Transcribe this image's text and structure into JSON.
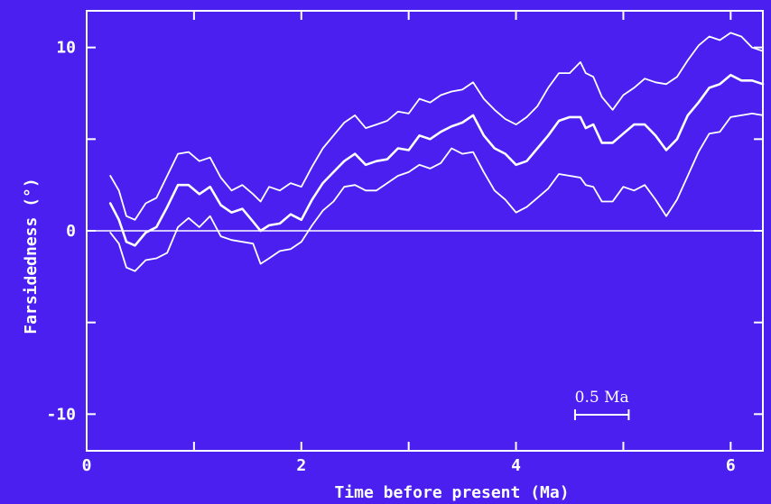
{
  "chart_data": {
    "type": "line",
    "title": "",
    "xlabel": "Time before present  (Ma)",
    "ylabel": "Farsidedness (°)",
    "xlim": [
      0,
      6.3
    ],
    "ylim": [
      -12,
      12
    ],
    "x_ticks": [
      0,
      2,
      4,
      6
    ],
    "x_tick_labels": [
      "0",
      "2",
      "4",
      "6"
    ],
    "y_ticks": [
      -10,
      0,
      10
    ],
    "y_tick_labels": [
      "-10",
      "0",
      "10"
    ],
    "grid": false,
    "reference_line_y": 0,
    "scale_bar": {
      "label": "0.5 Ma",
      "length": 0.5
    },
    "series": [
      {
        "x": [
          0.22,
          0.3,
          0.37,
          0.45,
          0.55,
          0.65,
          0.75,
          0.85,
          0.95,
          1.05,
          1.15,
          1.25,
          1.35,
          1.45,
          1.55,
          1.62,
          1.7,
          1.8,
          1.9,
          2.0,
          2.1,
          2.2,
          2.3,
          2.4,
          2.5,
          2.6,
          2.7,
          2.8,
          2.9,
          3.0,
          3.1,
          3.2,
          3.3,
          3.4,
          3.5,
          3.6,
          3.7,
          3.8,
          3.9,
          4.0,
          4.1,
          4.2,
          4.3,
          4.4,
          4.5,
          4.6,
          4.65,
          4.72,
          4.8,
          4.9,
          5.0,
          5.1,
          5.2,
          5.3,
          5.4,
          5.5,
          5.6,
          5.7,
          5.8,
          5.9,
          6.0,
          6.1,
          6.2,
          6.3
        ],
        "values": [
          3.0,
          2.2,
          0.8,
          0.6,
          1.5,
          1.8,
          3.0,
          4.2,
          4.3,
          3.8,
          4.0,
          2.9,
          2.2,
          2.5,
          2.0,
          1.6,
          2.4,
          2.2,
          2.6,
          2.4,
          3.5,
          4.5,
          5.2,
          5.9,
          6.3,
          5.6,
          5.8,
          6.0,
          6.5,
          6.4,
          7.2,
          7.0,
          7.4,
          7.6,
          7.7,
          8.1,
          7.2,
          6.6,
          6.1,
          5.8,
          6.2,
          6.8,
          7.8,
          8.6,
          8.6,
          9.2,
          8.6,
          8.4,
          7.3,
          6.6,
          7.4,
          7.8,
          8.3,
          8.1,
          8.0,
          8.4,
          9.3,
          10.1,
          10.6,
          10.4,
          10.8,
          10.6,
          10.0,
          9.8
        ]
      },
      {
        "x": [
          0.22,
          0.3,
          0.37,
          0.45,
          0.55,
          0.65,
          0.75,
          0.85,
          0.95,
          1.05,
          1.15,
          1.25,
          1.35,
          1.45,
          1.55,
          1.62,
          1.7,
          1.8,
          1.9,
          2.0,
          2.1,
          2.2,
          2.3,
          2.4,
          2.5,
          2.6,
          2.7,
          2.8,
          2.9,
          3.0,
          3.1,
          3.2,
          3.3,
          3.4,
          3.5,
          3.6,
          3.7,
          3.8,
          3.9,
          4.0,
          4.1,
          4.2,
          4.3,
          4.4,
          4.5,
          4.6,
          4.65,
          4.72,
          4.8,
          4.9,
          5.0,
          5.1,
          5.2,
          5.3,
          5.4,
          5.5,
          5.6,
          5.7,
          5.8,
          5.9,
          6.0,
          6.1,
          6.2,
          6.3
        ],
        "values": [
          1.5,
          0.6,
          -0.6,
          -0.8,
          -0.1,
          0.2,
          1.3,
          2.5,
          2.5,
          2.0,
          2.4,
          1.4,
          1.0,
          1.2,
          0.5,
          0.0,
          0.3,
          0.4,
          0.9,
          0.6,
          1.7,
          2.6,
          3.2,
          3.8,
          4.2,
          3.6,
          3.8,
          3.9,
          4.5,
          4.4,
          5.2,
          5.0,
          5.4,
          5.7,
          5.9,
          6.3,
          5.2,
          4.5,
          4.2,
          3.6,
          3.8,
          4.5,
          5.2,
          6.0,
          6.2,
          6.2,
          5.6,
          5.8,
          4.8,
          4.8,
          5.3,
          5.8,
          5.8,
          5.2,
          4.4,
          5.0,
          6.3,
          7.0,
          7.8,
          8.0,
          8.5,
          8.2,
          8.2,
          8.0
        ]
      },
      {
        "x": [
          0.22,
          0.3,
          0.37,
          0.45,
          0.55,
          0.65,
          0.75,
          0.85,
          0.95,
          1.05,
          1.15,
          1.25,
          1.35,
          1.45,
          1.55,
          1.62,
          1.7,
          1.8,
          1.9,
          2.0,
          2.1,
          2.2,
          2.3,
          2.4,
          2.5,
          2.6,
          2.7,
          2.8,
          2.9,
          3.0,
          3.1,
          3.2,
          3.3,
          3.4,
          3.5,
          3.6,
          3.7,
          3.8,
          3.9,
          4.0,
          4.1,
          4.2,
          4.3,
          4.4,
          4.5,
          4.6,
          4.65,
          4.72,
          4.8,
          4.9,
          5.0,
          5.1,
          5.2,
          5.3,
          5.4,
          5.5,
          5.6,
          5.7,
          5.8,
          5.9,
          6.0,
          6.1,
          6.2,
          6.3
        ],
        "values": [
          -0.1,
          -0.7,
          -2.0,
          -2.2,
          -1.6,
          -1.5,
          -1.2,
          0.2,
          0.7,
          0.2,
          0.8,
          -0.3,
          -0.5,
          -0.6,
          -0.7,
          -1.8,
          -1.5,
          -1.1,
          -1.0,
          -0.6,
          0.3,
          1.1,
          1.6,
          2.4,
          2.5,
          2.2,
          2.2,
          2.6,
          3.0,
          3.2,
          3.6,
          3.4,
          3.7,
          4.5,
          4.2,
          4.3,
          3.2,
          2.2,
          1.7,
          1.0,
          1.3,
          1.8,
          2.3,
          3.1,
          3.0,
          2.9,
          2.5,
          2.4,
          1.6,
          1.6,
          2.4,
          2.2,
          2.5,
          1.7,
          0.8,
          1.7,
          3.0,
          4.3,
          5.3,
          5.4,
          6.2,
          6.3,
          6.4,
          6.3
        ]
      }
    ]
  }
}
